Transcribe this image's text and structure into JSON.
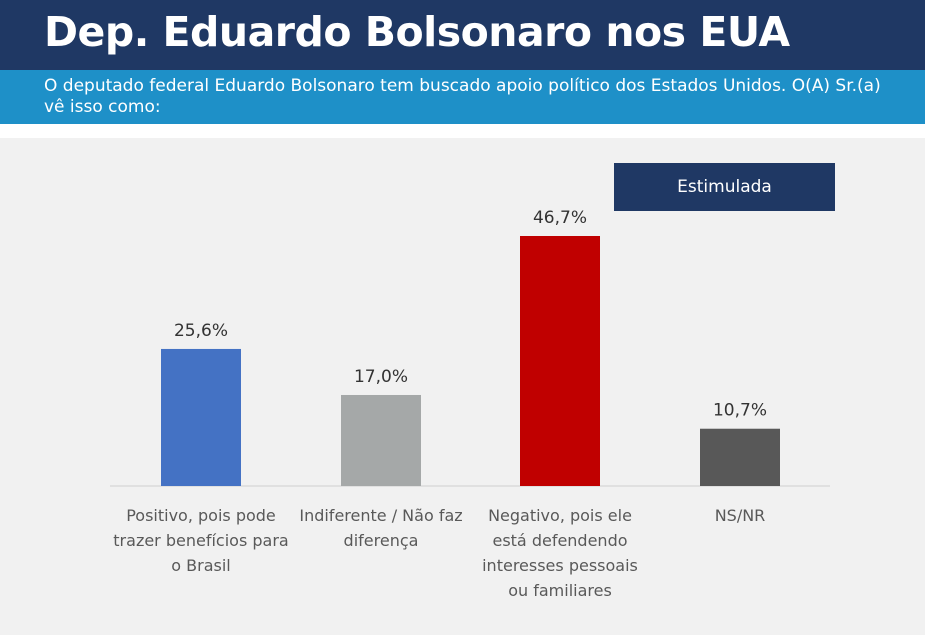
{
  "header": {
    "title": "Dep. Eduardo Bolsonaro nos EUA",
    "subtitle": "O deputado federal Eduardo Bolsonaro tem buscado apoio político dos Estados Unidos. O(A) Sr.(a) vê isso como:"
  },
  "badge": {
    "label": "Estimulada"
  },
  "colors": {
    "header": "#1f3864",
    "subheader": "#1e90c8",
    "bars": [
      "#4472c4",
      "#a5a8a8",
      "#c00000",
      "#585858"
    ]
  },
  "chart_data": {
    "type": "bar",
    "categories": [
      "Positivo, pois pode trazer benefícios para o Brasil",
      "Indiferente / Não faz diferença",
      "Negativo, pois ele está defendendo interesses pessoais ou familiares",
      "NS/NR"
    ],
    "values": [
      25.6,
      17.0,
      46.7,
      10.7
    ],
    "value_labels": [
      "25,6%",
      "17,0%",
      "46,7%",
      "10,7%"
    ],
    "unit": "%",
    "ylim": [
      0,
      50
    ],
    "grid": false,
    "legend": "none"
  }
}
